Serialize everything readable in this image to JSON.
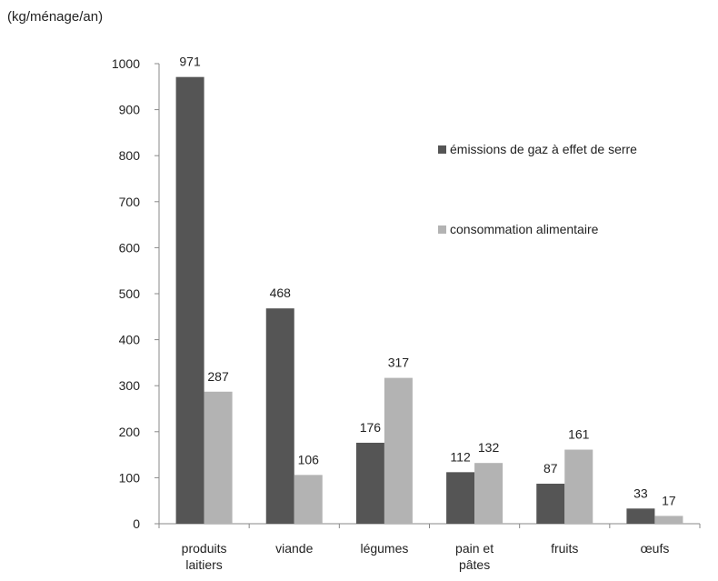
{
  "chart_data": {
    "type": "bar",
    "ylabel": "(kg/ménage/an)",
    "xlabel": "",
    "ylim": [
      0,
      1000
    ],
    "yticks": [
      0,
      100,
      200,
      300,
      400,
      500,
      600,
      700,
      800,
      900,
      1000
    ],
    "categories": [
      [
        "produits",
        "laitiers"
      ],
      [
        "viande"
      ],
      [
        "légumes"
      ],
      [
        "pain et",
        "pâtes"
      ],
      [
        "fruits"
      ],
      [
        "œufs"
      ]
    ],
    "series": [
      {
        "name": "émissions de gaz à effet de serre",
        "color": "#555555",
        "values": [
          971,
          468,
          176,
          112,
          87,
          33
        ]
      },
      {
        "name": "consommation alimentaire",
        "color": "#b3b3b3",
        "values": [
          287,
          106,
          317,
          132,
          161,
          17
        ]
      }
    ],
    "grid": false,
    "legend_position": "right"
  }
}
